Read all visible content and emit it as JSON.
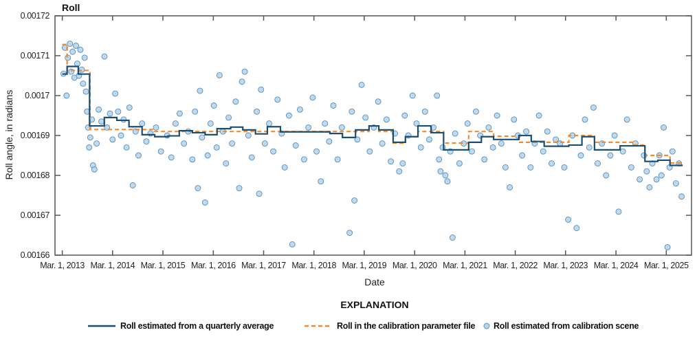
{
  "chart_data": {
    "type": "scatter",
    "title": "Roll",
    "xlabel": "Date",
    "ylabel": "Roll angle, in radians",
    "ylim": [
      0.00166,
      0.00172
    ],
    "xlim": [
      "2013-01-07",
      "2025-08-31"
    ],
    "grid": false,
    "y_ticks": [
      "0.00166",
      "0.00167",
      "0.00168",
      "0.00169",
      "0.0017",
      "0.00171",
      "0.00172"
    ],
    "y_tick_values": [
      0.00166,
      0.00167,
      0.00168,
      0.00169,
      0.0017,
      0.00171,
      0.00172
    ],
    "x_ticks": [
      "Mar. 1, 2013",
      "Mar. 1, 2014",
      "Mar. 1, 2015",
      "Mar. 1, 2016",
      "Mar. 1, 2017",
      "Mar. 1, 2018",
      "Mar. 1, 2019",
      "Mar. 1, 2020",
      "Mar. 1, 2021",
      "Mar. 1, 2022",
      "Mar. 1, 2023",
      "Mar. 1, 2024",
      "Mar. 1, 2025"
    ],
    "x_tick_values": [
      "2013-03-01",
      "2014-03-01",
      "2015-03-01",
      "2016-03-01",
      "2017-03-01",
      "2018-03-01",
      "2019-03-01",
      "2020-03-01",
      "2021-03-01",
      "2022-03-01",
      "2023-03-01",
      "2024-03-01",
      "2025-03-01"
    ],
    "legend": {
      "title": "EXPLANATION",
      "placement": "bottom",
      "entries": [
        {
          "label": "Roll estimated from a quarterly average",
          "type": "line",
          "color": "#1b4f72"
        },
        {
          "label": "Roll in the calibration parameter file",
          "type": "dashed-line",
          "color": "#f08a2c"
        },
        {
          "label": "Roll estimated from calibration scene",
          "type": "circle",
          "color": "#a9cde8"
        }
      ]
    },
    "series": [
      {
        "name": "Roll estimated from a quarterly average",
        "type": "step",
        "color": "#1b4f72",
        "end": "2025-06-28",
        "steps": [
          [
            "2013-03-01",
            0.0017054
          ],
          [
            "2013-04-05",
            0.0017073
          ],
          [
            "2013-06-25",
            0.0017054
          ],
          [
            "2013-09-15",
            0.0016924
          ],
          [
            "2013-12-31",
            0.0016945
          ],
          [
            "2014-04-01",
            0.0016938
          ],
          [
            "2014-06-28",
            0.0016922
          ],
          [
            "2014-10-01",
            0.0016902
          ],
          [
            "2015-01-01",
            0.0016897
          ],
          [
            "2015-04-08",
            0.0016899
          ],
          [
            "2015-06-28",
            0.0016912
          ],
          [
            "2015-10-01",
            0.0016907
          ],
          [
            "2016-01-01",
            0.0016902
          ],
          [
            "2016-03-28",
            0.0016917
          ],
          [
            "2016-07-05",
            0.0016921
          ],
          [
            "2016-10-01",
            0.0016914
          ],
          [
            "2017-01-01",
            0.0016904
          ],
          [
            "2017-03-28",
            0.0016922
          ],
          [
            "2017-07-01",
            0.0016909
          ],
          [
            "2018-06-25",
            0.0016905
          ],
          [
            "2018-09-24",
            0.0016895
          ],
          [
            "2018-12-28",
            0.0016914
          ],
          [
            "2019-04-05",
            0.0016924
          ],
          [
            "2019-06-15",
            0.0016914
          ],
          [
            "2019-09-27",
            0.0016883
          ],
          [
            "2019-12-25",
            0.0016897
          ],
          [
            "2020-03-25",
            0.0016924
          ],
          [
            "2020-06-28",
            0.0016907
          ],
          [
            "2020-09-27",
            0.0016864
          ],
          [
            "2021-03-28",
            0.0016883
          ],
          [
            "2021-06-28",
            0.0016897
          ],
          [
            "2021-09-25",
            0.001689
          ],
          [
            "2022-03-28",
            0.00169
          ],
          [
            "2022-06-25",
            0.0016885
          ],
          [
            "2022-09-27",
            0.0016873
          ],
          [
            "2023-03-25",
            0.0016876
          ],
          [
            "2023-06-28",
            0.0016897
          ],
          [
            "2023-09-27",
            0.0016864
          ],
          [
            "2024-03-31",
            0.0016874
          ],
          [
            "2024-09-27",
            0.0016835
          ],
          [
            "2024-12-30",
            0.0016838
          ],
          [
            "2025-03-28",
            0.0016825
          ]
        ]
      },
      {
        "name": "Roll in the calibration parameter file",
        "type": "step",
        "color": "#f08a2c",
        "end": "2025-06-28",
        "steps": [
          [
            "2013-03-01",
            0.0017128
          ],
          [
            "2013-04-05",
            0.0017063
          ],
          [
            "2013-09-18",
            0.0016915
          ],
          [
            "2014-12-28",
            0.001691
          ],
          [
            "2019-04-05",
            0.0016924
          ],
          [
            "2019-06-15",
            0.001691
          ],
          [
            "2019-09-27",
            0.0016881
          ],
          [
            "2019-12-25",
            0.0016897
          ],
          [
            "2020-03-25",
            0.001691
          ],
          [
            "2020-09-27",
            0.0016881
          ],
          [
            "2021-03-28",
            0.001691
          ],
          [
            "2021-09-25",
            0.0016898
          ],
          [
            "2022-03-28",
            0.0016883
          ],
          [
            "2023-03-25",
            0.00169
          ],
          [
            "2023-09-27",
            0.0016883
          ],
          [
            "2024-06-28",
            0.0016876
          ],
          [
            "2024-09-27",
            0.001685
          ],
          [
            "2025-03-28",
            0.0016831
          ]
        ]
      },
      {
        "name": "Roll estimated from calibration scene",
        "type": "scatter",
        "color": "#a9cde8",
        "points": [
          [
            "2013-03-10",
            0.0017055
          ],
          [
            "2013-03-20",
            0.001712
          ],
          [
            "2013-04-01",
            0.0017
          ],
          [
            "2013-04-10",
            0.0017095
          ],
          [
            "2013-04-25",
            0.001713
          ],
          [
            "2013-05-05",
            0.001706
          ],
          [
            "2013-05-15",
            0.001711
          ],
          [
            "2013-05-28",
            0.0017045
          ],
          [
            "2013-06-08",
            0.0017125
          ],
          [
            "2013-06-18",
            0.001708
          ],
          [
            "2013-06-30",
            0.001705
          ],
          [
            "2013-07-10",
            0.0017115
          ],
          [
            "2013-07-20",
            0.0017065
          ],
          [
            "2013-07-30",
            0.001703
          ],
          [
            "2013-08-10",
            0.0017095
          ],
          [
            "2013-08-20",
            0.001701
          ],
          [
            "2013-08-28",
            0.001696
          ],
          [
            "2013-09-05",
            0.001692
          ],
          [
            "2013-09-12",
            0.001687
          ],
          [
            "2013-09-20",
            0.0016895
          ],
          [
            "2013-10-01",
            0.001694
          ],
          [
            "2013-10-10",
            0.0016825
          ],
          [
            "2013-10-20",
            0.0016815
          ],
          [
            "2013-11-05",
            0.001688
          ],
          [
            "2013-11-20",
            0.0016965
          ],
          [
            "2013-12-10",
            0.0016935
          ],
          [
            "2014-01-01",
            0.0017098
          ],
          [
            "2014-01-20",
            0.001692
          ],
          [
            "2014-02-10",
            0.0016955
          ],
          [
            "2014-03-01",
            0.001689
          ],
          [
            "2014-03-20",
            0.0017005
          ],
          [
            "2014-04-10",
            0.001696
          ],
          [
            "2014-05-01",
            0.00169
          ],
          [
            "2014-05-20",
            0.001694
          ],
          [
            "2014-06-10",
            0.001687
          ],
          [
            "2014-07-01",
            0.001697
          ],
          [
            "2014-07-25",
            0.0016775
          ],
          [
            "2014-08-15",
            0.001691
          ],
          [
            "2014-09-05",
            0.001685
          ],
          [
            "2014-10-01",
            0.001693
          ],
          [
            "2014-11-01",
            0.0016885
          ],
          [
            "2014-12-01",
            0.0016905
          ],
          [
            "2015-01-10",
            0.001692
          ],
          [
            "2015-02-15",
            0.001686
          ],
          [
            "2015-04-01",
            0.00169
          ],
          [
            "2015-05-01",
            0.0016845
          ],
          [
            "2015-06-01",
            0.001693
          ],
          [
            "2015-07-01",
            0.0016955
          ],
          [
            "2015-08-01",
            0.001688
          ],
          [
            "2015-09-01",
            0.001691
          ],
          [
            "2015-10-01",
            0.001684
          ],
          [
            "2015-10-20",
            0.001696
          ],
          [
            "2015-11-10",
            0.0016768
          ],
          [
            "2015-11-25",
            0.0017012
          ],
          [
            "2015-12-10",
            0.0016895
          ],
          [
            "2016-01-01",
            0.0016732
          ],
          [
            "2016-01-20",
            0.001685
          ],
          [
            "2016-02-10",
            0.001693
          ],
          [
            "2016-03-05",
            0.0016975
          ],
          [
            "2016-03-25",
            0.001687
          ],
          [
            "2016-04-15",
            0.0017051
          ],
          [
            "2016-05-10",
            0.001691
          ],
          [
            "2016-06-01",
            0.001683
          ],
          [
            "2016-06-20",
            0.0016945
          ],
          [
            "2016-07-15",
            0.001688
          ],
          [
            "2016-08-10",
            0.0016985
          ],
          [
            "2016-09-05",
            0.0016768
          ],
          [
            "2016-09-25",
            0.0017035
          ],
          [
            "2016-10-15",
            0.001706
          ],
          [
            "2016-11-10",
            0.00169
          ],
          [
            "2016-12-05",
            0.0016845
          ],
          [
            "2017-01-10",
            0.001696
          ],
          [
            "2017-01-28",
            0.0016754
          ],
          [
            "2017-02-10",
            0.0017015
          ],
          [
            "2017-03-10",
            0.001688
          ],
          [
            "2017-04-10",
            0.001693
          ],
          [
            "2017-05-10",
            0.001686
          ],
          [
            "2017-06-10",
            0.001699
          ],
          [
            "2017-07-10",
            0.0016905
          ],
          [
            "2017-08-01",
            0.001682
          ],
          [
            "2017-09-01",
            0.001695
          ],
          [
            "2017-09-25",
            0.0016627
          ],
          [
            "2017-10-20",
            0.0016875
          ],
          [
            "2017-11-20",
            0.0016965
          ],
          [
            "2017-12-20",
            0.001684
          ],
          [
            "2018-01-20",
            0.001692
          ],
          [
            "2018-02-20",
            0.0016995
          ],
          [
            "2018-03-20",
            0.001686
          ],
          [
            "2018-04-20",
            0.0016785
          ],
          [
            "2018-05-20",
            0.001693
          ],
          [
            "2018-06-20",
            0.0016885
          ],
          [
            "2018-07-20",
            0.0016975
          ],
          [
            "2018-08-20",
            0.001684
          ],
          [
            "2018-09-20",
            0.001692
          ],
          [
            "2018-11-15",
            0.0016656
          ],
          [
            "2018-12-01",
            0.001696
          ],
          [
            "2018-12-20",
            0.0016737
          ],
          [
            "2019-01-10",
            0.001689
          ],
          [
            "2019-02-10",
            0.0017027
          ],
          [
            "2019-03-10",
            0.0016945
          ],
          [
            "2019-04-10",
            0.001686
          ],
          [
            "2019-05-10",
            0.001692
          ],
          [
            "2019-06-10",
            0.0016985
          ],
          [
            "2019-07-10",
            0.001688
          ],
          [
            "2019-08-10",
            0.001694
          ],
          [
            "2019-09-10",
            0.0016835
          ],
          [
            "2019-10-10",
            0.0016905
          ],
          [
            "2019-11-10",
            0.001681
          ],
          [
            "2019-12-05",
            0.001683
          ],
          [
            "2019-12-20",
            0.001695
          ],
          [
            "2020-01-15",
            0.00169
          ],
          [
            "2020-02-15",
            0.0017
          ],
          [
            "2020-03-15",
            0.001693
          ],
          [
            "2020-04-15",
            0.001687
          ],
          [
            "2020-05-15",
            0.001696
          ],
          [
            "2020-06-15",
            0.001689
          ],
          [
            "2020-07-15",
            0.001692
          ],
          [
            "2020-08-10",
            0.0017
          ],
          [
            "2020-08-25",
            0.001684
          ],
          [
            "2020-09-05",
            0.001681
          ],
          [
            "2020-09-20",
            0.001687
          ],
          [
            "2020-10-10",
            0.00168
          ],
          [
            "2020-10-25",
            0.0016785
          ],
          [
            "2020-11-15",
            0.001686
          ],
          [
            "2020-12-01",
            0.0016644
          ],
          [
            "2020-12-20",
            0.0016905
          ],
          [
            "2021-01-20",
            0.001683
          ],
          [
            "2021-02-20",
            0.001688
          ],
          [
            "2021-03-20",
            0.001693
          ],
          [
            "2021-04-20",
            0.001686
          ],
          [
            "2021-05-20",
            0.001696
          ],
          [
            "2021-06-20",
            0.00169
          ],
          [
            "2021-07-20",
            0.001684
          ],
          [
            "2021-08-20",
            0.001692
          ],
          [
            "2021-09-20",
            0.001687
          ],
          [
            "2021-10-20",
            0.001695
          ],
          [
            "2021-11-20",
            0.001688
          ],
          [
            "2021-12-20",
            0.001682
          ],
          [
            "2022-01-20",
            0.001677
          ],
          [
            "2022-02-20",
            0.001694
          ],
          [
            "2022-03-20",
            0.00169
          ],
          [
            "2022-04-20",
            0.001685
          ],
          [
            "2022-05-20",
            0.001691
          ],
          [
            "2022-06-20",
            0.001682
          ],
          [
            "2022-07-20",
            0.001688
          ],
          [
            "2022-08-20",
            0.001695
          ],
          [
            "2022-09-20",
            0.001686
          ],
          [
            "2022-10-20",
            0.001691
          ],
          [
            "2022-11-20",
            0.001683
          ],
          [
            "2022-12-20",
            0.001689
          ],
          [
            "2023-01-20",
            0.001688
          ],
          [
            "2023-02-20",
            0.001682
          ],
          [
            "2023-03-20",
            0.0016689
          ],
          [
            "2023-04-20",
            0.00169
          ],
          [
            "2023-05-20",
            0.0016668
          ],
          [
            "2023-06-20",
            0.001685
          ],
          [
            "2023-07-20",
            0.001694
          ],
          [
            "2023-08-20",
            0.001687
          ],
          [
            "2023-09-20",
            0.001697
          ],
          [
            "2023-10-20",
            0.001683
          ],
          [
            "2023-11-20",
            0.001688
          ],
          [
            "2023-12-20",
            0.00168
          ],
          [
            "2024-01-20",
            0.001685
          ],
          [
            "2024-02-20",
            0.00169
          ],
          [
            "2024-03-20",
            0.0016709
          ],
          [
            "2024-04-20",
            0.001686
          ],
          [
            "2024-05-20",
            0.001694
          ],
          [
            "2024-06-20",
            0.001682
          ],
          [
            "2024-07-20",
            0.001688
          ],
          [
            "2024-08-20",
            0.001679
          ],
          [
            "2024-09-20",
            0.001685
          ],
          [
            "2024-10-10",
            0.001681
          ],
          [
            "2024-10-30",
            0.001677
          ],
          [
            "2024-11-20",
            0.001683
          ],
          [
            "2024-12-20",
            0.001679
          ],
          [
            "2025-01-10",
            0.001685
          ],
          [
            "2025-01-25",
            0.00168
          ],
          [
            "2025-02-10",
            0.001692
          ],
          [
            "2025-03-10",
            0.001662
          ],
          [
            "2025-03-25",
            0.001682
          ],
          [
            "2025-04-15",
            0.001686
          ],
          [
            "2025-05-10",
            0.001678
          ],
          [
            "2025-06-01",
            0.001683
          ],
          [
            "2025-06-20",
            0.0016747
          ]
        ]
      }
    ]
  }
}
